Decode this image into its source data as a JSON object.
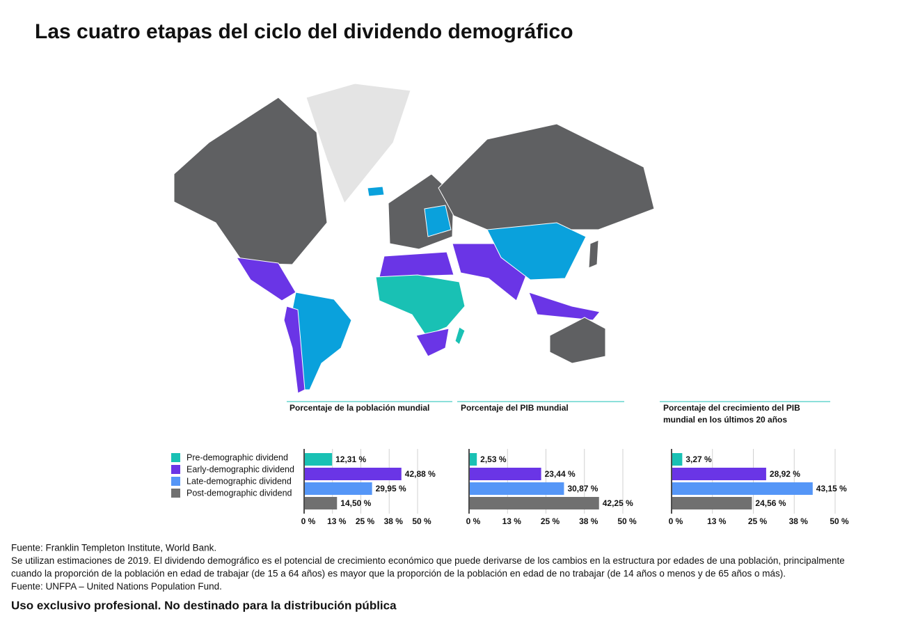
{
  "title": "Las cuatro etapas del ciclo del dividendo demográfico",
  "legend": {
    "items": [
      {
        "name": "Pre-demographic dividend",
        "color": "#19c1b4"
      },
      {
        "name": "Early-demographic dividend",
        "color": "#6a35e6"
      },
      {
        "name": "Late-demographic dividend",
        "color": "#5596f7"
      },
      {
        "name": "Post-demographic dividend",
        "color": "#707070"
      }
    ]
  },
  "value_label_colors": [
    "#4a6cf0",
    "#19c1b4",
    "#6a35e6",
    "#555555"
  ],
  "chart_data": [
    {
      "type": "bar",
      "title_lines": [
        "Porcentaje de la población mundial"
      ],
      "values": [
        12.31,
        42.88,
        29.95,
        14.5
      ],
      "value_labels": [
        "12,31 %",
        "42,88 %",
        "29,95 %",
        "14,50 %"
      ],
      "xlim": [
        0,
        50
      ],
      "xticks": [
        {
          "value": 0,
          "label": "0 %"
        },
        {
          "value": 12.5,
          "label": "13 %"
        },
        {
          "value": 25,
          "label": "25 %"
        },
        {
          "value": 37.5,
          "label": "38 %"
        },
        {
          "value": 50,
          "label": "50 %"
        }
      ],
      "grid": true
    },
    {
      "type": "bar",
      "title_lines": [
        "Porcentaje del PIB mundial"
      ],
      "values": [
        2.53,
        23.44,
        30.87,
        42.25
      ],
      "value_labels": [
        "2,53 %",
        "23,44 %",
        "30,87 %",
        "42,25 %"
      ],
      "xlim": [
        0,
        50
      ],
      "xticks": [
        {
          "value": 0,
          "label": "0 %"
        },
        {
          "value": 12.5,
          "label": "13 %"
        },
        {
          "value": 25,
          "label": "25 %"
        },
        {
          "value": 37.5,
          "label": "38 %"
        },
        {
          "value": 50,
          "label": "50 %"
        }
      ],
      "grid": true
    },
    {
      "type": "bar",
      "title_lines": [
        "Porcentaje del crecimiento del PIB",
        "mundial en los últimos 20 años"
      ],
      "values": [
        3.27,
        28.92,
        43.15,
        24.56
      ],
      "value_labels": [
        "3,27 %",
        "28,92 %",
        "43,15 %",
        "24,56 %"
      ],
      "xlim": [
        0,
        50
      ],
      "xticks": [
        {
          "value": 0,
          "label": "0 %"
        },
        {
          "value": 12.5,
          "label": "13 %"
        },
        {
          "value": 25,
          "label": "25 %"
        },
        {
          "value": 37.5,
          "label": "38 %"
        },
        {
          "value": 50,
          "label": "50 %"
        }
      ],
      "grid": true
    }
  ],
  "notes": [
    "Fuente: Franklin Templeton Institute, World Bank.",
    "Se utilizan estimaciones de 2019. El dividendo demográfico es el potencial de crecimiento económico que puede derivarse de los cambios en la estructura por edades de una población, principalmente",
    "cuando la proporción de la población en edad de trabajar (de 15 a 64 años) es mayor que la proporción de la población en edad de no trabajar (de 14 años o menos y de 65 años o más).",
    "Fuente: UNFPA – United Nations Population Fund."
  ],
  "footer": "Uso exclusivo profesional. No destinado para la distribución pública"
}
